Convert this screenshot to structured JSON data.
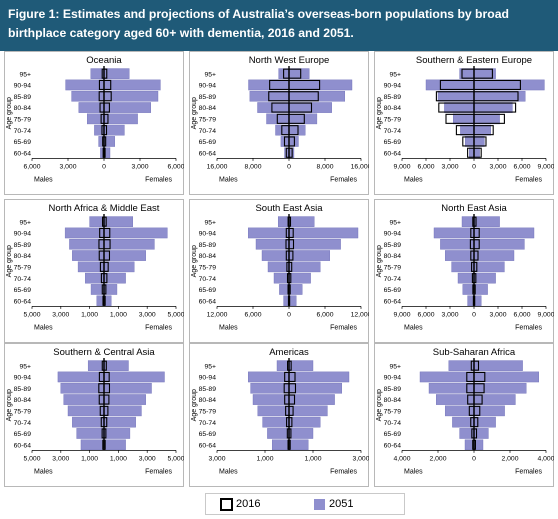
{
  "title": "Figure 1: Estimates and projections of Australia’s overseas-born populations by broad birthplace category aged 60+ with dementia, 2016 and 2051.",
  "legend": {
    "label_2016": "2016",
    "label_2051": "2051"
  },
  "colors": {
    "header_bg": "#1f5a78",
    "bar_2051": "#8f8fce",
    "bar_2051_stroke": "#6f6fb8",
    "bar_2016_stroke": "#000000"
  },
  "chart_data": [
    {
      "type": "bar",
      "orientation": "population-pyramid",
      "title": "Oceania",
      "categories": [
        "95+",
        "90-94",
        "85-89",
        "80-84",
        "75-79",
        "70-74",
        "65-69",
        "60-64"
      ],
      "ylabel": "Age group",
      "xlabel_left": "Males",
      "xlabel_right": "Females",
      "xlim": [
        -6000,
        6000
      ],
      "xticks": [
        -6000,
        -3000,
        0,
        3000,
        6000
      ],
      "xtick_labels": [
        "6,000",
        "3,000",
        "0",
        "3,000",
        "6,000"
      ],
      "series": [
        {
          "name": "2016",
          "males": [
            150,
            380,
            400,
            330,
            240,
            170,
            110,
            70
          ],
          "females": [
            230,
            560,
            600,
            450,
            330,
            210,
            140,
            90
          ]
        },
        {
          "name": "2051",
          "males": [
            1100,
            3200,
            2700,
            2100,
            1400,
            800,
            450,
            300
          ],
          "females": [
            2100,
            4700,
            4500,
            3900,
            2800,
            1700,
            900,
            500
          ]
        }
      ]
    },
    {
      "type": "bar",
      "orientation": "population-pyramid",
      "title": "North West Europe",
      "categories": [
        "95+",
        "90-94",
        "85-89",
        "80-84",
        "75-79",
        "70-74",
        "65-69",
        "60-64"
      ],
      "ylabel": "Age group",
      "xlabel_left": "Males",
      "xlabel_right": "Females",
      "xlim": [
        -16000,
        16000
      ],
      "xticks": [
        -16000,
        -8000,
        0,
        8000,
        16000
      ],
      "xtick_labels": [
        "16,000",
        "8,000",
        "0",
        "8,000",
        "16,000"
      ],
      "series": [
        {
          "name": "2016",
          "males": [
            1200,
            4300,
            4500,
            3800,
            2600,
            1600,
            1000,
            600
          ],
          "females": [
            2600,
            6800,
            6500,
            5000,
            3400,
            2000,
            1200,
            700
          ]
        },
        {
          "name": "2051",
          "males": [
            2300,
            9000,
            8700,
            7000,
            5000,
            3000,
            1800,
            1000
          ],
          "females": [
            4500,
            14000,
            12400,
            9500,
            6200,
            3600,
            2100,
            1100
          ]
        }
      ]
    },
    {
      "type": "bar",
      "orientation": "population-pyramid",
      "title": "Southern & Eastern Europe",
      "categories": [
        "95+",
        "90-94",
        "85-89",
        "80-84",
        "75-79",
        "70-74",
        "65-69",
        "60-64"
      ],
      "ylabel": "Age group",
      "xlabel_left": "Males",
      "xlabel_right": "Females",
      "xlim": [
        -9000,
        9000
      ],
      "xticks": [
        -9000,
        -6000,
        -3000,
        0,
        3000,
        6000,
        9000
      ],
      "xtick_labels": [
        "9,000",
        "6,000",
        "3,000",
        "0",
        "3,000",
        "6,000",
        "9,000"
      ],
      "series": [
        {
          "name": "2016",
          "males": [
            1500,
            4200,
            4700,
            4400,
            3500,
            2200,
            1400,
            800
          ],
          "females": [
            2300,
            5800,
            5500,
            5200,
            3800,
            2400,
            1500,
            900
          ]
        },
        {
          "name": "2051",
          "males": [
            1800,
            6000,
            4500,
            3700,
            2600,
            1700,
            1100,
            600
          ],
          "females": [
            2700,
            8800,
            6400,
            4800,
            3200,
            2100,
            1300,
            700
          ]
        }
      ]
    },
    {
      "type": "bar",
      "orientation": "population-pyramid",
      "title": "North Africa & Middle East",
      "categories": [
        "95+",
        "90-94",
        "85-89",
        "80-84",
        "75-79",
        "70-74",
        "65-69",
        "60-64"
      ],
      "ylabel": "Age group",
      "xlabel_left": "Males",
      "xlabel_right": "Females",
      "xlim": [
        -5000,
        5000
      ],
      "xticks": [
        -5000,
        -3000,
        -1000,
        1000,
        3000,
        5000
      ],
      "xtick_labels": [
        "5,000",
        "3,000",
        "1,000",
        "1,000",
        "3,000",
        "5,000"
      ],
      "series": [
        {
          "name": "2016",
          "males": [
            100,
            300,
            350,
            330,
            250,
            180,
            120,
            70
          ],
          "females": [
            150,
            400,
            420,
            380,
            290,
            200,
            130,
            80
          ]
        },
        {
          "name": "2051",
          "males": [
            1000,
            2700,
            2400,
            2200,
            1800,
            1300,
            900,
            500
          ],
          "females": [
            2000,
            4400,
            3500,
            2900,
            2100,
            1500,
            900,
            500
          ]
        }
      ]
    },
    {
      "type": "bar",
      "orientation": "population-pyramid",
      "title": "South East Asia",
      "categories": [
        "95+",
        "90-94",
        "85-89",
        "80-84",
        "75-79",
        "70-74",
        "65-69",
        "60-64"
      ],
      "ylabel": "Age group",
      "xlabel_left": "Males",
      "xlabel_right": "Females",
      "xlim": [
        -12000,
        12000
      ],
      "xticks": [
        -12000,
        -6000,
        0,
        6000,
        12000
      ],
      "xtick_labels": [
        "12,000",
        "6,000",
        "0",
        "6,000",
        "12,000"
      ],
      "series": [
        {
          "name": "2016",
          "males": [
            150,
            450,
            500,
            450,
            350,
            250,
            160,
            90
          ],
          "females": [
            250,
            700,
            750,
            650,
            450,
            300,
            200,
            110
          ]
        },
        {
          "name": "2051",
          "males": [
            1800,
            6800,
            5500,
            4500,
            3500,
            2500,
            1600,
            900
          ],
          "females": [
            4200,
            11500,
            8600,
            6800,
            5200,
            3600,
            2200,
            1200
          ]
        }
      ]
    },
    {
      "type": "bar",
      "orientation": "population-pyramid",
      "title": "North East Asia",
      "categories": [
        "95+",
        "90-94",
        "85-89",
        "80-84",
        "75-79",
        "70-74",
        "65-69",
        "60-64"
      ],
      "ylabel": "Age group",
      "xlabel_left": "Males",
      "xlabel_right": "Females",
      "xlim": [
        -9000,
        9000
      ],
      "xticks": [
        -9000,
        -6000,
        -3000,
        0,
        3000,
        6000,
        9000
      ],
      "xtick_labels": [
        "9,000",
        "6,000",
        "3,000",
        "0",
        "3,000",
        "6,000",
        "9,000"
      ],
      "series": [
        {
          "name": "2016",
          "males": [
            150,
            400,
            450,
            400,
            300,
            200,
            140,
            80
          ],
          "females": [
            250,
            650,
            650,
            500,
            350,
            230,
            150,
            90
          ]
        },
        {
          "name": "2051",
          "males": [
            1500,
            5000,
            4200,
            3600,
            2800,
            2000,
            1400,
            800
          ],
          "females": [
            3200,
            7500,
            6300,
            5000,
            3800,
            2700,
            1700,
            900
          ]
        }
      ]
    },
    {
      "type": "bar",
      "orientation": "population-pyramid",
      "title": "Southern & Central Asia",
      "categories": [
        "95+",
        "90-94",
        "85-89",
        "80-84",
        "75-79",
        "70-74",
        "65-69",
        "60-64"
      ],
      "ylabel": "Age group",
      "xlabel_left": "Males",
      "xlabel_right": "Females",
      "xlim": [
        -5000,
        5000
      ],
      "xticks": [
        -5000,
        -3000,
        -1000,
        1000,
        3000,
        5000
      ],
      "xtick_labels": [
        "5,000",
        "3,000",
        "1,000",
        "1,000",
        "3,000",
        "5,000"
      ],
      "series": [
        {
          "name": "2016",
          "males": [
            120,
            320,
            360,
            330,
            260,
            190,
            130,
            80
          ],
          "females": [
            160,
            360,
            380,
            340,
            270,
            190,
            130,
            80
          ]
        },
        {
          "name": "2051",
          "males": [
            1100,
            3200,
            3000,
            2800,
            2500,
            2200,
            1900,
            1600
          ],
          "females": [
            1700,
            4200,
            3300,
            2900,
            2600,
            2200,
            1800,
            1500
          ]
        }
      ]
    },
    {
      "type": "bar",
      "orientation": "population-pyramid",
      "title": "Americas",
      "categories": [
        "95+",
        "90-94",
        "85-89",
        "80-84",
        "75-79",
        "70-74",
        "65-69",
        "60-64"
      ],
      "ylabel": "Age group",
      "xlabel_left": "Males",
      "xlabel_right": "Females",
      "xlim": [
        -3000,
        3000
      ],
      "xticks": [
        -3000,
        -1000,
        1000,
        3000
      ],
      "xtick_labels": [
        "3,000",
        "1,000",
        "1,000",
        "3,000"
      ],
      "series": [
        {
          "name": "2016",
          "males": [
            60,
            180,
            200,
            180,
            140,
            100,
            70,
            40
          ],
          "females": [
            90,
            250,
            270,
            230,
            170,
            120,
            80,
            50
          ]
        },
        {
          "name": "2051",
          "males": [
            500,
            1700,
            1600,
            1500,
            1300,
            1100,
            900,
            700
          ],
          "females": [
            1000,
            2500,
            2200,
            1900,
            1600,
            1300,
            1000,
            800
          ]
        }
      ]
    },
    {
      "type": "bar",
      "orientation": "population-pyramid",
      "title": "Sub-Saharan Africa",
      "categories": [
        "95+",
        "90-94",
        "85-89",
        "80-84",
        "75-79",
        "70-74",
        "65-69",
        "60-64"
      ],
      "ylabel": "Age group",
      "xlabel_left": "Males",
      "xlabel_right": "Females",
      "xlim": [
        -4000,
        4000
      ],
      "xticks": [
        -4000,
        -2000,
        0,
        2000,
        4000
      ],
      "xtick_labels": [
        "4,000",
        "2,000",
        "0",
        "2,000",
        "4,000"
      ],
      "series": [
        {
          "name": "2016",
          "males": [
            150,
            400,
            400,
            350,
            260,
            180,
            120,
            70
          ],
          "females": [
            250,
            600,
            560,
            450,
            320,
            210,
            140,
            80
          ]
        },
        {
          "name": "2051",
          "males": [
            1400,
            3000,
            2500,
            2100,
            1600,
            1200,
            800,
            500
          ],
          "females": [
            2700,
            3600,
            2900,
            2300,
            1700,
            1200,
            800,
            500
          ]
        }
      ]
    }
  ]
}
